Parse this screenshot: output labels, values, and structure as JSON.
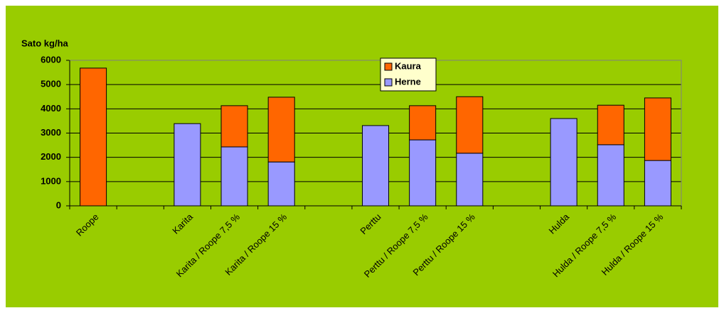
{
  "chart_data": {
    "type": "stacked_bar",
    "y_label": "Sato kg/ha",
    "categories": [
      "Roope",
      null,
      "Karita",
      "Karita / Roope 7,5 %",
      "Karita / Roope 15 %",
      null,
      "Perttu",
      "Perttu / Roope 7,5 %",
      "Perttu / Roope 15 %",
      null,
      "Hulda",
      "Hulda / Roope 7,5 %",
      "Hulda / Roope 15 %"
    ],
    "series": [
      {
        "name": "Herne",
        "color": "#9999ff",
        "values": [
          0,
          null,
          3390,
          2430,
          1810,
          null,
          3310,
          2720,
          2170,
          null,
          3600,
          2520,
          1870
        ]
      },
      {
        "name": "Kaura",
        "color": "#ff6600",
        "values": [
          5680,
          null,
          0,
          1700,
          2670,
          null,
          0,
          1410,
          2330,
          null,
          0,
          1630,
          2580
        ]
      }
    ],
    "ylim": [
      0,
      6000
    ],
    "yticks": [
      0,
      1000,
      2000,
      3000,
      4000,
      5000,
      6000
    ],
    "grid": true,
    "legend": "top"
  }
}
